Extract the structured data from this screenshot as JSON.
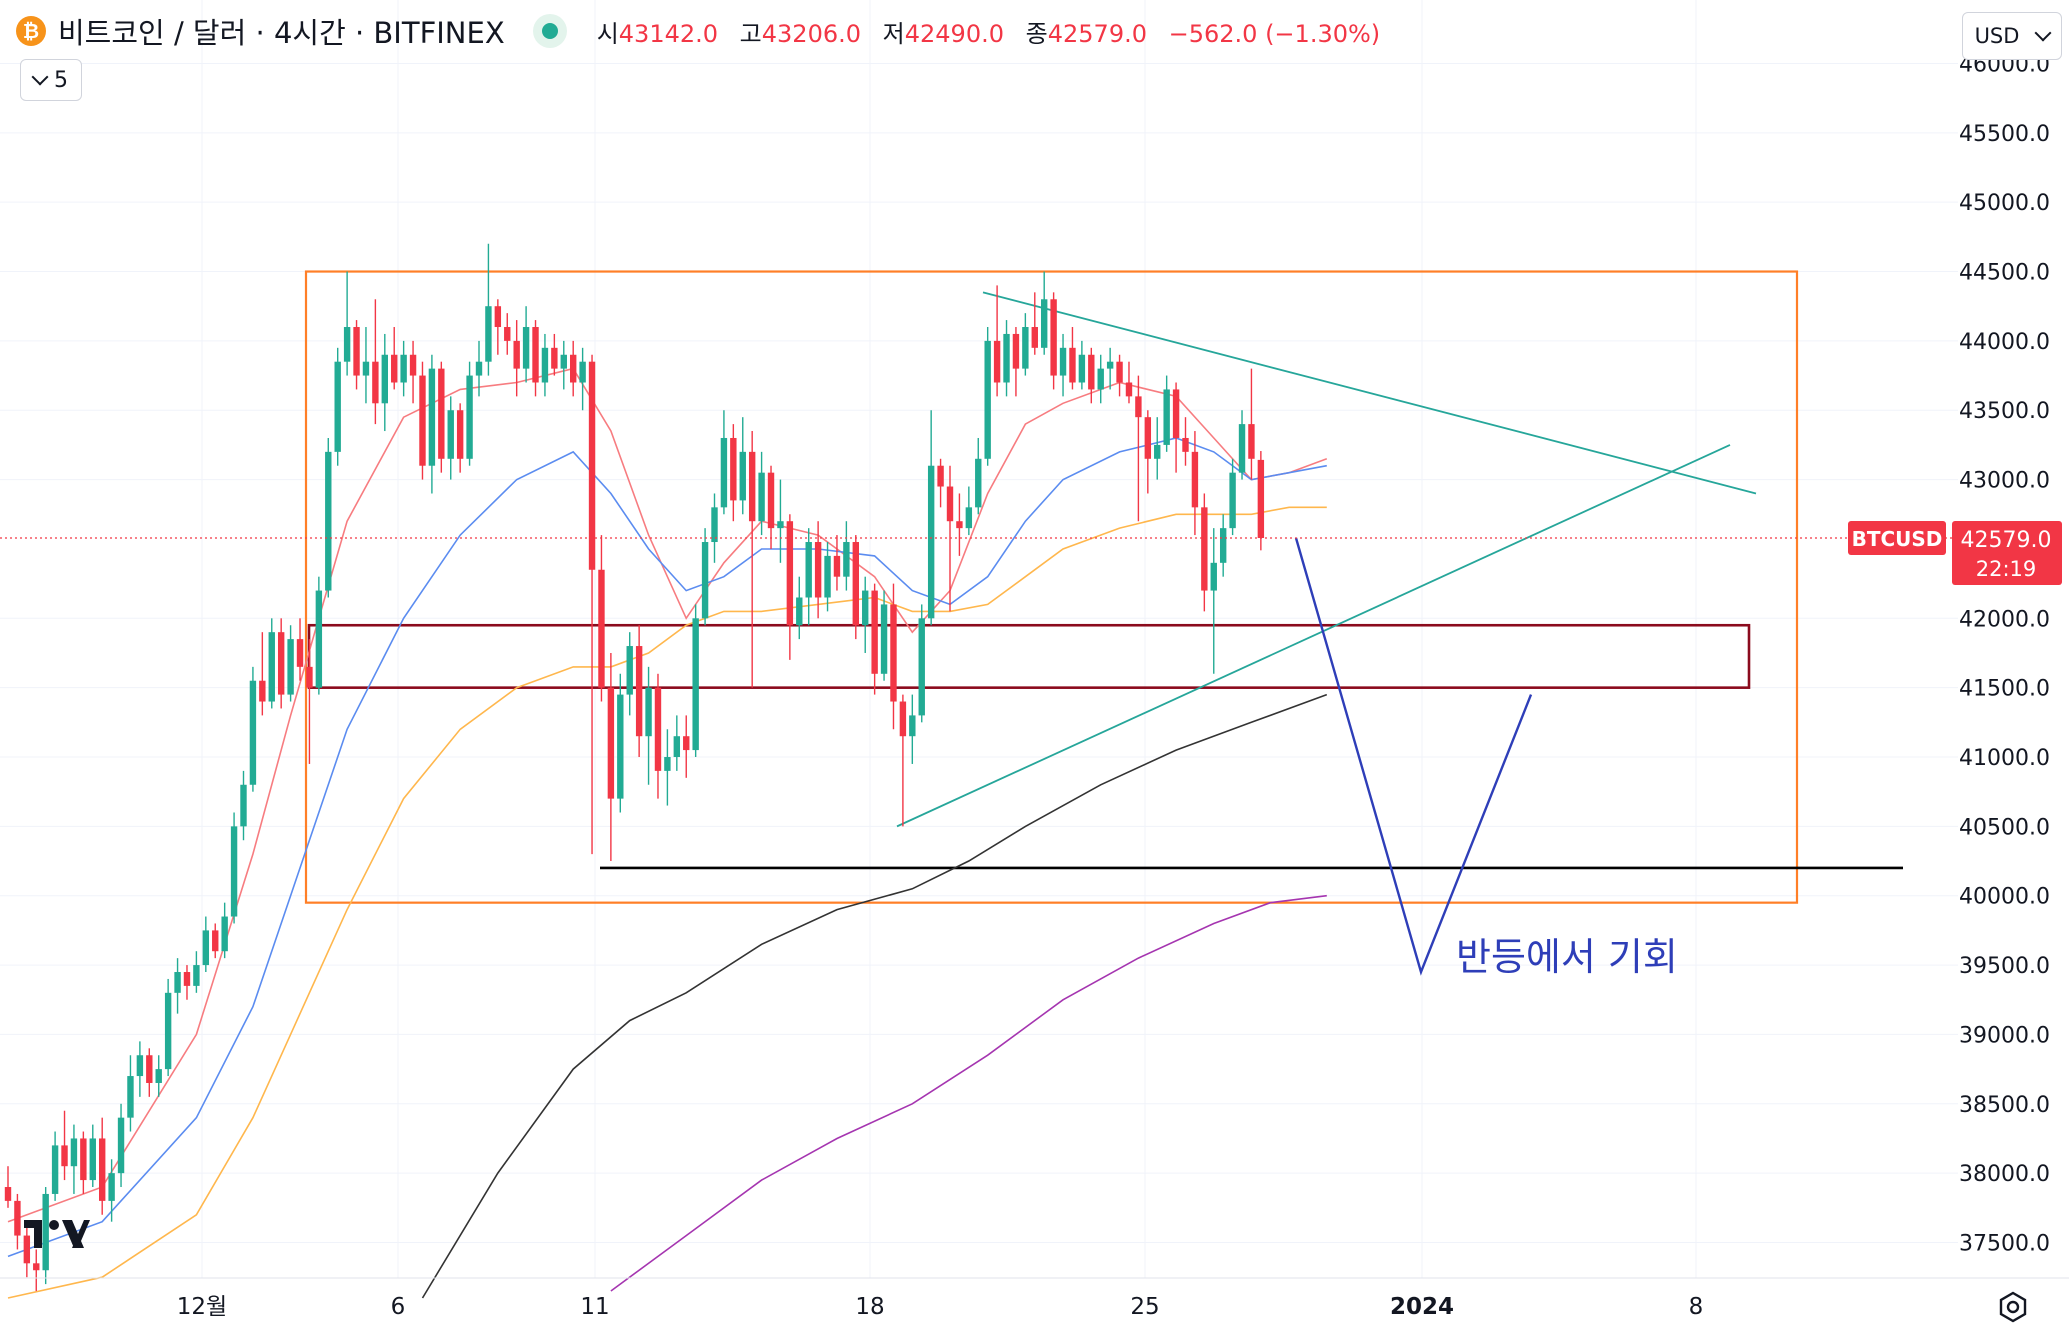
{
  "header": {
    "coin_icon": "bitcoin-icon",
    "symbol_title": "비트코인 / 달러 · 4시간 · BITFINEX",
    "market_status_icon": "market-open-dot-icon",
    "ohlc": {
      "open_label": "시",
      "open": "43142.0",
      "high_label": "고",
      "high": "43206.0",
      "low_label": "저",
      "low": "42490.0",
      "close_label": "종",
      "close": "42579.0",
      "change": "−562.0 (−1.30%)"
    },
    "indicators_toggle": "5",
    "currency": "USD"
  },
  "price_axis": {
    "labels": [
      "46000.0",
      "45500.0",
      "45000.0",
      "44500.0",
      "44000.0",
      "43500.0",
      "43000.0",
      "42000.0",
      "41500.0",
      "41000.0",
      "40500.0",
      "40000.0",
      "39500.0",
      "39000.0",
      "38500.0",
      "38000.0",
      "37500.0"
    ],
    "values": [
      46000,
      45500,
      45000,
      44500,
      44000,
      43500,
      43000,
      42000,
      41500,
      41000,
      40500,
      40000,
      39500,
      39000,
      38500,
      38000,
      37500
    ]
  },
  "time_axis": {
    "labels": [
      "12월",
      "6",
      "11",
      "18",
      "25",
      "2024",
      "8"
    ]
  },
  "last_price": {
    "symbol": "BTCUSD",
    "price": "42579.0",
    "countdown": "22:19"
  },
  "annotation": {
    "text": "반등에서 기회"
  },
  "colors": {
    "up": "#22ab94",
    "down": "#f23645",
    "range_box": "#ff7f27",
    "support_box": "#8b0b1d",
    "trendline": "#26a69a",
    "projection": "#2e3eb8",
    "ma_red": "#f77c80",
    "ma_blue": "#5b8cf0",
    "ma_orange": "#ffb74d",
    "ma_black": "#333333",
    "ma_purple": "#a535b0"
  },
  "chart_data": {
    "type": "candlestick",
    "symbol": "BTCUSD",
    "interval": "4시간",
    "exchange": "BITFINEX",
    "y_range": [
      37200,
      46100
    ],
    "last": {
      "open": 43142.0,
      "high": 43206.0,
      "low": 42490.0,
      "close": 42579.0,
      "change": -562.0,
      "change_pct": -1.3
    },
    "ohlc": [
      [
        37900,
        38050,
        37750,
        37800
      ],
      [
        37800,
        37850,
        37450,
        37550
      ],
      [
        37550,
        37650,
        37250,
        37350
      ],
      [
        37350,
        37450,
        37150,
        37300
      ],
      [
        37300,
        37900,
        37200,
        37850
      ],
      [
        37850,
        38300,
        37800,
        38200
      ],
      [
        38200,
        38450,
        37950,
        38050
      ],
      [
        38050,
        38350,
        37850,
        38250
      ],
      [
        38250,
        38300,
        37850,
        37950
      ],
      [
        37950,
        38350,
        37900,
        38250
      ],
      [
        38250,
        38400,
        37700,
        37800
      ],
      [
        37800,
        38100,
        37650,
        38000
      ],
      [
        38000,
        38500,
        37900,
        38400
      ],
      [
        38400,
        38850,
        38300,
        38700
      ],
      [
        38700,
        38950,
        38550,
        38850
      ],
      [
        38850,
        38900,
        38550,
        38650
      ],
      [
        38650,
        38850,
        38550,
        38750
      ],
      [
        38750,
        39400,
        38700,
        39300
      ],
      [
        39300,
        39550,
        39150,
        39450
      ],
      [
        39450,
        39500,
        39250,
        39350
      ],
      [
        39350,
        39600,
        39300,
        39500
      ],
      [
        39500,
        39850,
        39450,
        39750
      ],
      [
        39750,
        39800,
        39550,
        39600
      ],
      [
        39600,
        39950,
        39550,
        39850
      ],
      [
        39850,
        40600,
        39800,
        40500
      ],
      [
        40500,
        40900,
        40400,
        40800
      ],
      [
        40800,
        41650,
        40750,
        41550
      ],
      [
        41550,
        41900,
        41300,
        41400
      ],
      [
        41400,
        42000,
        41350,
        41900
      ],
      [
        41900,
        42000,
        41350,
        41450
      ],
      [
        41450,
        41950,
        41400,
        41850
      ],
      [
        41850,
        42000,
        41550,
        41650
      ],
      [
        41650,
        41850,
        40950,
        41500
      ],
      [
        41500,
        42300,
        41450,
        42200
      ],
      [
        42200,
        43300,
        42150,
        43200
      ],
      [
        43200,
        43950,
        43100,
        43850
      ],
      [
        43850,
        44500,
        43750,
        44100
      ],
      [
        44100,
        44150,
        43650,
        43750
      ],
      [
        43750,
        44100,
        43550,
        43850
      ],
      [
        43850,
        44300,
        43400,
        43550
      ],
      [
        43550,
        44050,
        43350,
        43900
      ],
      [
        43900,
        44100,
        43650,
        43700
      ],
      [
        43700,
        44000,
        43600,
        43900
      ],
      [
        43900,
        44000,
        43550,
        43750
      ],
      [
        43750,
        43850,
        43000,
        43100
      ],
      [
        43100,
        43900,
        42900,
        43800
      ],
      [
        43800,
        43850,
        43050,
        43150
      ],
      [
        43150,
        43600,
        43000,
        43500
      ],
      [
        43500,
        43550,
        43050,
        43150
      ],
      [
        43150,
        43850,
        43100,
        43750
      ],
      [
        43750,
        44000,
        43600,
        43850
      ],
      [
        43850,
        44700,
        43750,
        44250
      ],
      [
        44250,
        44300,
        43900,
        44100
      ],
      [
        44100,
        44200,
        43900,
        44000
      ],
      [
        44000,
        44150,
        43600,
        43800
      ],
      [
        43800,
        44250,
        43700,
        44100
      ],
      [
        44100,
        44150,
        43600,
        43700
      ],
      [
        43700,
        44050,
        43600,
        43950
      ],
      [
        43950,
        44050,
        43750,
        43800
      ],
      [
        43800,
        44000,
        43650,
        43900
      ],
      [
        43900,
        44000,
        43600,
        43700
      ],
      [
        43700,
        43950,
        43500,
        43850
      ],
      [
        43850,
        43900,
        40300,
        42350
      ],
      [
        42350,
        42600,
        41400,
        41500
      ],
      [
        41500,
        41750,
        40250,
        40700
      ],
      [
        40700,
        41600,
        40600,
        41450
      ],
      [
        41450,
        41900,
        41300,
        41800
      ],
      [
        41800,
        41950,
        41000,
        41150
      ],
      [
        41150,
        41650,
        40800,
        41500
      ],
      [
        41500,
        41600,
        40700,
        40900
      ],
      [
        40900,
        41200,
        40650,
        41000
      ],
      [
        41000,
        41300,
        40900,
        41150
      ],
      [
        41150,
        41300,
        40850,
        41050
      ],
      [
        41050,
        42100,
        41000,
        42000
      ],
      [
        42000,
        42650,
        41950,
        42550
      ],
      [
        42550,
        42900,
        42400,
        42800
      ],
      [
        42800,
        43500,
        42750,
        43300
      ],
      [
        43300,
        43400,
        42700,
        42850
      ],
      [
        42850,
        43450,
        42750,
        43200
      ],
      [
        43200,
        43350,
        41500,
        42700
      ],
      [
        42700,
        43200,
        42600,
        43050
      ],
      [
        43050,
        43100,
        42500,
        42650
      ],
      [
        42650,
        43000,
        42400,
        42700
      ],
      [
        42700,
        42750,
        41700,
        41950
      ],
      [
        41950,
        42300,
        41850,
        42150
      ],
      [
        42150,
        42650,
        41950,
        42550
      ],
      [
        42550,
        42700,
        42000,
        42150
      ],
      [
        42150,
        42550,
        42050,
        42450
      ],
      [
        42450,
        42600,
        42200,
        42300
      ],
      [
        42300,
        42700,
        42200,
        42550
      ],
      [
        42550,
        42600,
        41850,
        41950
      ],
      [
        41950,
        42300,
        41750,
        42200
      ],
      [
        42200,
        42250,
        41450,
        41600
      ],
      [
        41600,
        42200,
        41550,
        42100
      ],
      [
        42100,
        42250,
        41200,
        41400
      ],
      [
        41400,
        41450,
        40500,
        41150
      ],
      [
        41150,
        41450,
        40950,
        41300
      ],
      [
        41300,
        42100,
        41250,
        42000
      ],
      [
        42000,
        43500,
        41950,
        43100
      ],
      [
        43100,
        43150,
        42800,
        42950
      ],
      [
        42950,
        43100,
        42050,
        42700
      ],
      [
        42700,
        42900,
        42450,
        42650
      ],
      [
        42650,
        42950,
        42600,
        42800
      ],
      [
        42800,
        43300,
        42750,
        43150
      ],
      [
        43150,
        44100,
        43100,
        44000
      ],
      [
        44000,
        44400,
        43600,
        43700
      ],
      [
        43700,
        44150,
        43600,
        44050
      ],
      [
        44050,
        44100,
        43600,
        43800
      ],
      [
        43800,
        44200,
        43750,
        44100
      ],
      [
        44100,
        44350,
        43900,
        43950
      ],
      [
        43950,
        44500,
        43900,
        44300
      ],
      [
        44300,
        44350,
        43650,
        43750
      ],
      [
        43750,
        44050,
        43600,
        43950
      ],
      [
        43950,
        44100,
        43650,
        43700
      ],
      [
        43700,
        44000,
        43650,
        43900
      ],
      [
        43900,
        43950,
        43550,
        43650
      ],
      [
        43650,
        43900,
        43550,
        43800
      ],
      [
        43800,
        43950,
        43650,
        43850
      ],
      [
        43850,
        43900,
        43600,
        43700
      ],
      [
        43700,
        43850,
        43550,
        43600
      ],
      [
        43600,
        43750,
        42700,
        43450
      ],
      [
        43450,
        43500,
        42900,
        43150
      ],
      [
        43150,
        43450,
        43000,
        43250
      ],
      [
        43250,
        43750,
        43200,
        43650
      ],
      [
        43650,
        43700,
        43050,
        43300
      ],
      [
        43300,
        43450,
        43100,
        43200
      ],
      [
        43200,
        43350,
        42600,
        42800
      ],
      [
        42800,
        42900,
        42050,
        42200
      ],
      [
        42200,
        42650,
        41600,
        42400
      ],
      [
        42400,
        42750,
        42300,
        42650
      ],
      [
        42650,
        43150,
        42600,
        43050
      ],
      [
        43050,
        43500,
        43000,
        43400
      ],
      [
        43400,
        43800,
        43000,
        43150
      ],
      [
        43142,
        43206,
        42490,
        42579
      ]
    ],
    "moving_averages": [
      {
        "color": "red",
        "points": [
          [
            0,
            37650
          ],
          [
            10,
            37900
          ],
          [
            20,
            39000
          ],
          [
            26,
            40300
          ],
          [
            30,
            41300
          ],
          [
            36,
            42700
          ],
          [
            42,
            43450
          ],
          [
            48,
            43650
          ],
          [
            54,
            43700
          ],
          [
            60,
            43800
          ],
          [
            64,
            43350
          ],
          [
            68,
            42600
          ],
          [
            72,
            42000
          ],
          [
            76,
            42400
          ],
          [
            80,
            42700
          ],
          [
            86,
            42600
          ],
          [
            92,
            42300
          ],
          [
            96,
            41900
          ],
          [
            100,
            42200
          ],
          [
            104,
            42900
          ],
          [
            108,
            43400
          ],
          [
            112,
            43550
          ],
          [
            118,
            43700
          ],
          [
            124,
            43600
          ],
          [
            128,
            43300
          ],
          [
            132,
            43000
          ],
          [
            136,
            43050
          ],
          [
            140,
            43150
          ]
        ]
      },
      {
        "color": "blue",
        "points": [
          [
            0,
            37400
          ],
          [
            10,
            37650
          ],
          [
            20,
            38400
          ],
          [
            26,
            39200
          ],
          [
            30,
            40000
          ],
          [
            36,
            41200
          ],
          [
            42,
            42000
          ],
          [
            48,
            42600
          ],
          [
            54,
            43000
          ],
          [
            60,
            43200
          ],
          [
            64,
            42900
          ],
          [
            68,
            42500
          ],
          [
            72,
            42200
          ],
          [
            76,
            42300
          ],
          [
            80,
            42500
          ],
          [
            86,
            42500
          ],
          [
            92,
            42450
          ],
          [
            96,
            42200
          ],
          [
            100,
            42100
          ],
          [
            104,
            42300
          ],
          [
            108,
            42700
          ],
          [
            112,
            43000
          ],
          [
            118,
            43200
          ],
          [
            124,
            43300
          ],
          [
            128,
            43200
          ],
          [
            132,
            43000
          ],
          [
            136,
            43050
          ],
          [
            140,
            43100
          ]
        ]
      },
      {
        "color": "orange",
        "points": [
          [
            0,
            37100
          ],
          [
            10,
            37250
          ],
          [
            20,
            37700
          ],
          [
            26,
            38400
          ],
          [
            30,
            39000
          ],
          [
            36,
            39900
          ],
          [
            42,
            40700
          ],
          [
            48,
            41200
          ],
          [
            54,
            41500
          ],
          [
            60,
            41650
          ],
          [
            64,
            41650
          ],
          [
            68,
            41750
          ],
          [
            72,
            41950
          ],
          [
            76,
            42050
          ],
          [
            80,
            42050
          ],
          [
            86,
            42100
          ],
          [
            92,
            42150
          ],
          [
            96,
            42050
          ],
          [
            100,
            42050
          ],
          [
            104,
            42100
          ],
          [
            108,
            42300
          ],
          [
            112,
            42500
          ],
          [
            118,
            42650
          ],
          [
            124,
            42750
          ],
          [
            128,
            42750
          ],
          [
            132,
            42750
          ],
          [
            136,
            42800
          ],
          [
            140,
            42800
          ]
        ]
      },
      {
        "color": "black",
        "points": [
          [
            44,
            37100
          ],
          [
            52,
            38000
          ],
          [
            60,
            38750
          ],
          [
            66,
            39100
          ],
          [
            72,
            39300
          ],
          [
            80,
            39650
          ],
          [
            88,
            39900
          ],
          [
            96,
            40050
          ],
          [
            102,
            40250
          ],
          [
            108,
            40500
          ],
          [
            116,
            40800
          ],
          [
            124,
            41050
          ],
          [
            132,
            41250
          ],
          [
            140,
            41450
          ]
        ]
      },
      {
        "color": "purple",
        "points": [
          [
            64,
            37150
          ],
          [
            72,
            37550
          ],
          [
            80,
            37950
          ],
          [
            88,
            38250
          ],
          [
            96,
            38500
          ],
          [
            104,
            38850
          ],
          [
            112,
            39250
          ],
          [
            120,
            39550
          ],
          [
            128,
            39800
          ],
          [
            134,
            39950
          ],
          [
            140,
            40000
          ]
        ]
      }
    ],
    "drawings": {
      "range_box": {
        "price_top": 44500,
        "price_bottom": 39950
      },
      "support_box": {
        "price_top": 41950,
        "price_bottom": 41500
      },
      "support_line": {
        "price": 40200
      },
      "descending_trendline": {
        "from": 44350,
        "to": 42900
      },
      "ascending_trendline": {
        "from": 40500,
        "to": 43250
      },
      "projection_path": {
        "prices": [
          42579,
          39450,
          41450
        ],
        "note": "반등에서 기회"
      }
    }
  }
}
